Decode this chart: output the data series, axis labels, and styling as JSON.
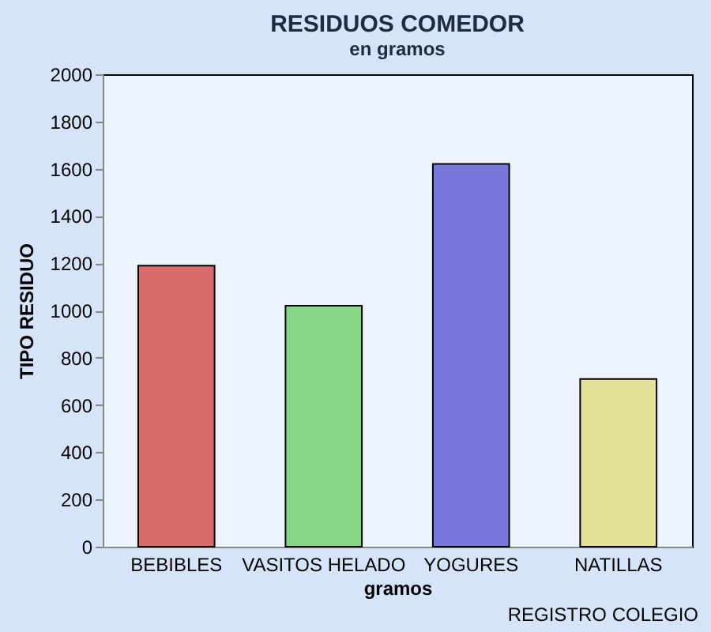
{
  "chart_data": {
    "type": "bar",
    "title": "RESIDUOS COMEDOR",
    "subtitle": "en gramos",
    "xlabel": "gramos",
    "ylabel": "TIPO RESIDUO",
    "categories": [
      "BEBIBLES",
      "VASITOS HELADO",
      "YOGURES",
      "NATILLAS"
    ],
    "values": [
      1190,
      1020,
      1620,
      710
    ],
    "colors": [
      "#d96b6b",
      "#86d886",
      "#7878dc",
      "#e4e098"
    ],
    "ylim": [
      0,
      2000
    ],
    "yticks": [
      0,
      200,
      400,
      600,
      800,
      1000,
      1200,
      1400,
      1600,
      1800,
      2000
    ],
    "annotations": [
      "REGISTRO COLEGIO"
    ]
  }
}
